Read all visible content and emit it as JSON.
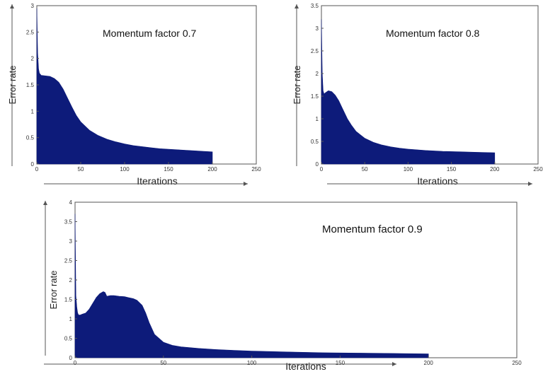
{
  "colors": {
    "fill": "#0d1b7a",
    "axis": "#555555"
  },
  "chart_data": [
    {
      "type": "area",
      "annotation": "Momentum factor 0.7",
      "xlabel": "Iterations",
      "ylabel": "Error rate",
      "xlim": [
        0,
        250
      ],
      "ylim": [
        0,
        3
      ],
      "xticks": [
        0,
        50,
        100,
        150,
        200,
        250
      ],
      "yticks": [
        0,
        0.5,
        1,
        1.5,
        2,
        2.5,
        3
      ],
      "series": [
        {
          "x": [
            0,
            1,
            2,
            3,
            5,
            10,
            15,
            20,
            25,
            30,
            35,
            40,
            45,
            50,
            60,
            70,
            80,
            90,
            100,
            110,
            120,
            130,
            140,
            150,
            160,
            170,
            180,
            190,
            200
          ],
          "y": [
            2.95,
            2.1,
            1.8,
            1.72,
            1.68,
            1.67,
            1.66,
            1.62,
            1.55,
            1.42,
            1.25,
            1.08,
            0.92,
            0.8,
            0.64,
            0.54,
            0.47,
            0.42,
            0.38,
            0.35,
            0.33,
            0.31,
            0.29,
            0.28,
            0.27,
            0.26,
            0.25,
            0.24,
            0.23
          ]
        }
      ]
    },
    {
      "type": "area",
      "annotation": "Momentum factor 0.8",
      "xlabel": "Iterations",
      "ylabel": "Error rate",
      "xlim": [
        0,
        250
      ],
      "ylim": [
        0,
        3.5
      ],
      "xticks": [
        0,
        50,
        100,
        150,
        200,
        250
      ],
      "yticks": [
        0,
        0.5,
        1,
        1.5,
        2,
        2.5,
        3,
        3.5
      ],
      "series": [
        {
          "x": [
            0,
            1,
            2,
            3,
            5,
            8,
            12,
            16,
            20,
            25,
            30,
            35,
            40,
            50,
            60,
            70,
            80,
            90,
            100,
            120,
            140,
            160,
            180,
            200
          ],
          "y": [
            3.2,
            2.0,
            1.62,
            1.55,
            1.58,
            1.62,
            1.6,
            1.52,
            1.4,
            1.2,
            1.0,
            0.85,
            0.72,
            0.57,
            0.48,
            0.42,
            0.38,
            0.35,
            0.33,
            0.3,
            0.28,
            0.27,
            0.26,
            0.25
          ]
        }
      ]
    },
    {
      "type": "area",
      "annotation": "Momentum factor 0.9",
      "xlabel": "Iterations",
      "ylabel": "Error rate",
      "xlim": [
        0,
        250
      ],
      "ylim": [
        0,
        4
      ],
      "xticks": [
        0,
        50,
        100,
        150,
        200,
        250
      ],
      "yticks": [
        0,
        0.5,
        1,
        1.5,
        2,
        2.5,
        3,
        3.5,
        4
      ],
      "series": [
        {
          "x": [
            0,
            0.5,
            1,
            1.5,
            2,
            3,
            4,
            6,
            8,
            10,
            12,
            14,
            16,
            17,
            18,
            20,
            22,
            25,
            28,
            30,
            33,
            35,
            38,
            40,
            42,
            45,
            50,
            55,
            60,
            70,
            80,
            90,
            100,
            120,
            140,
            160,
            180,
            200
          ],
          "y": [
            3.7,
            1.6,
            1.3,
            1.15,
            1.1,
            1.1,
            1.12,
            1.15,
            1.25,
            1.4,
            1.55,
            1.65,
            1.7,
            1.68,
            1.58,
            1.6,
            1.6,
            1.58,
            1.57,
            1.55,
            1.52,
            1.48,
            1.35,
            1.15,
            0.9,
            0.6,
            0.4,
            0.32,
            0.28,
            0.24,
            0.21,
            0.19,
            0.17,
            0.15,
            0.13,
            0.12,
            0.11,
            0.1
          ]
        }
      ]
    }
  ]
}
